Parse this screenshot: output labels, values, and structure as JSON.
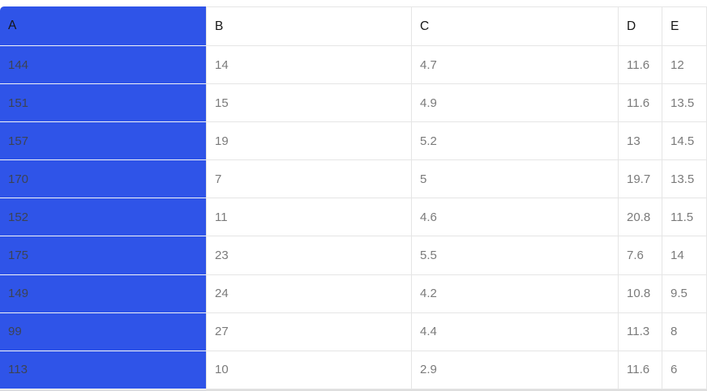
{
  "colors": {
    "selection_blue": "#2F54E8",
    "grid_border": "#e5e5e5",
    "header_text": "#161616",
    "cell_text": "#7a7a7a",
    "selected_cell_text": "#3c4354",
    "selected_grid_border": "#f4f5f7",
    "page_bottom_strip": "#dedede"
  },
  "table": {
    "columns": [
      {
        "key": "A",
        "label": "A",
        "selected": true
      },
      {
        "key": "B",
        "label": "B",
        "selected": false
      },
      {
        "key": "C",
        "label": "C",
        "selected": false
      },
      {
        "key": "D",
        "label": "D",
        "selected": false
      },
      {
        "key": "E",
        "label": "E",
        "selected": false
      }
    ],
    "rows": [
      [
        "144",
        "14",
        "4.7",
        "11.6",
        "12"
      ],
      [
        "151",
        "15",
        "4.9",
        "11.6",
        "13.5"
      ],
      [
        "157",
        "19",
        "5.2",
        "13",
        "14.5"
      ],
      [
        "170",
        "7",
        "5",
        "19.7",
        "13.5"
      ],
      [
        "152",
        "11",
        "4.6",
        "20.8",
        "11.5"
      ],
      [
        "175",
        "23",
        "5.5",
        "7.6",
        "14"
      ],
      [
        "149",
        "24",
        "4.2",
        "10.8",
        "9.5"
      ],
      [
        "99",
        "27",
        "4.4",
        "11.3",
        "8"
      ],
      [
        "113",
        "10",
        "2.9",
        "11.6",
        "6"
      ]
    ]
  }
}
